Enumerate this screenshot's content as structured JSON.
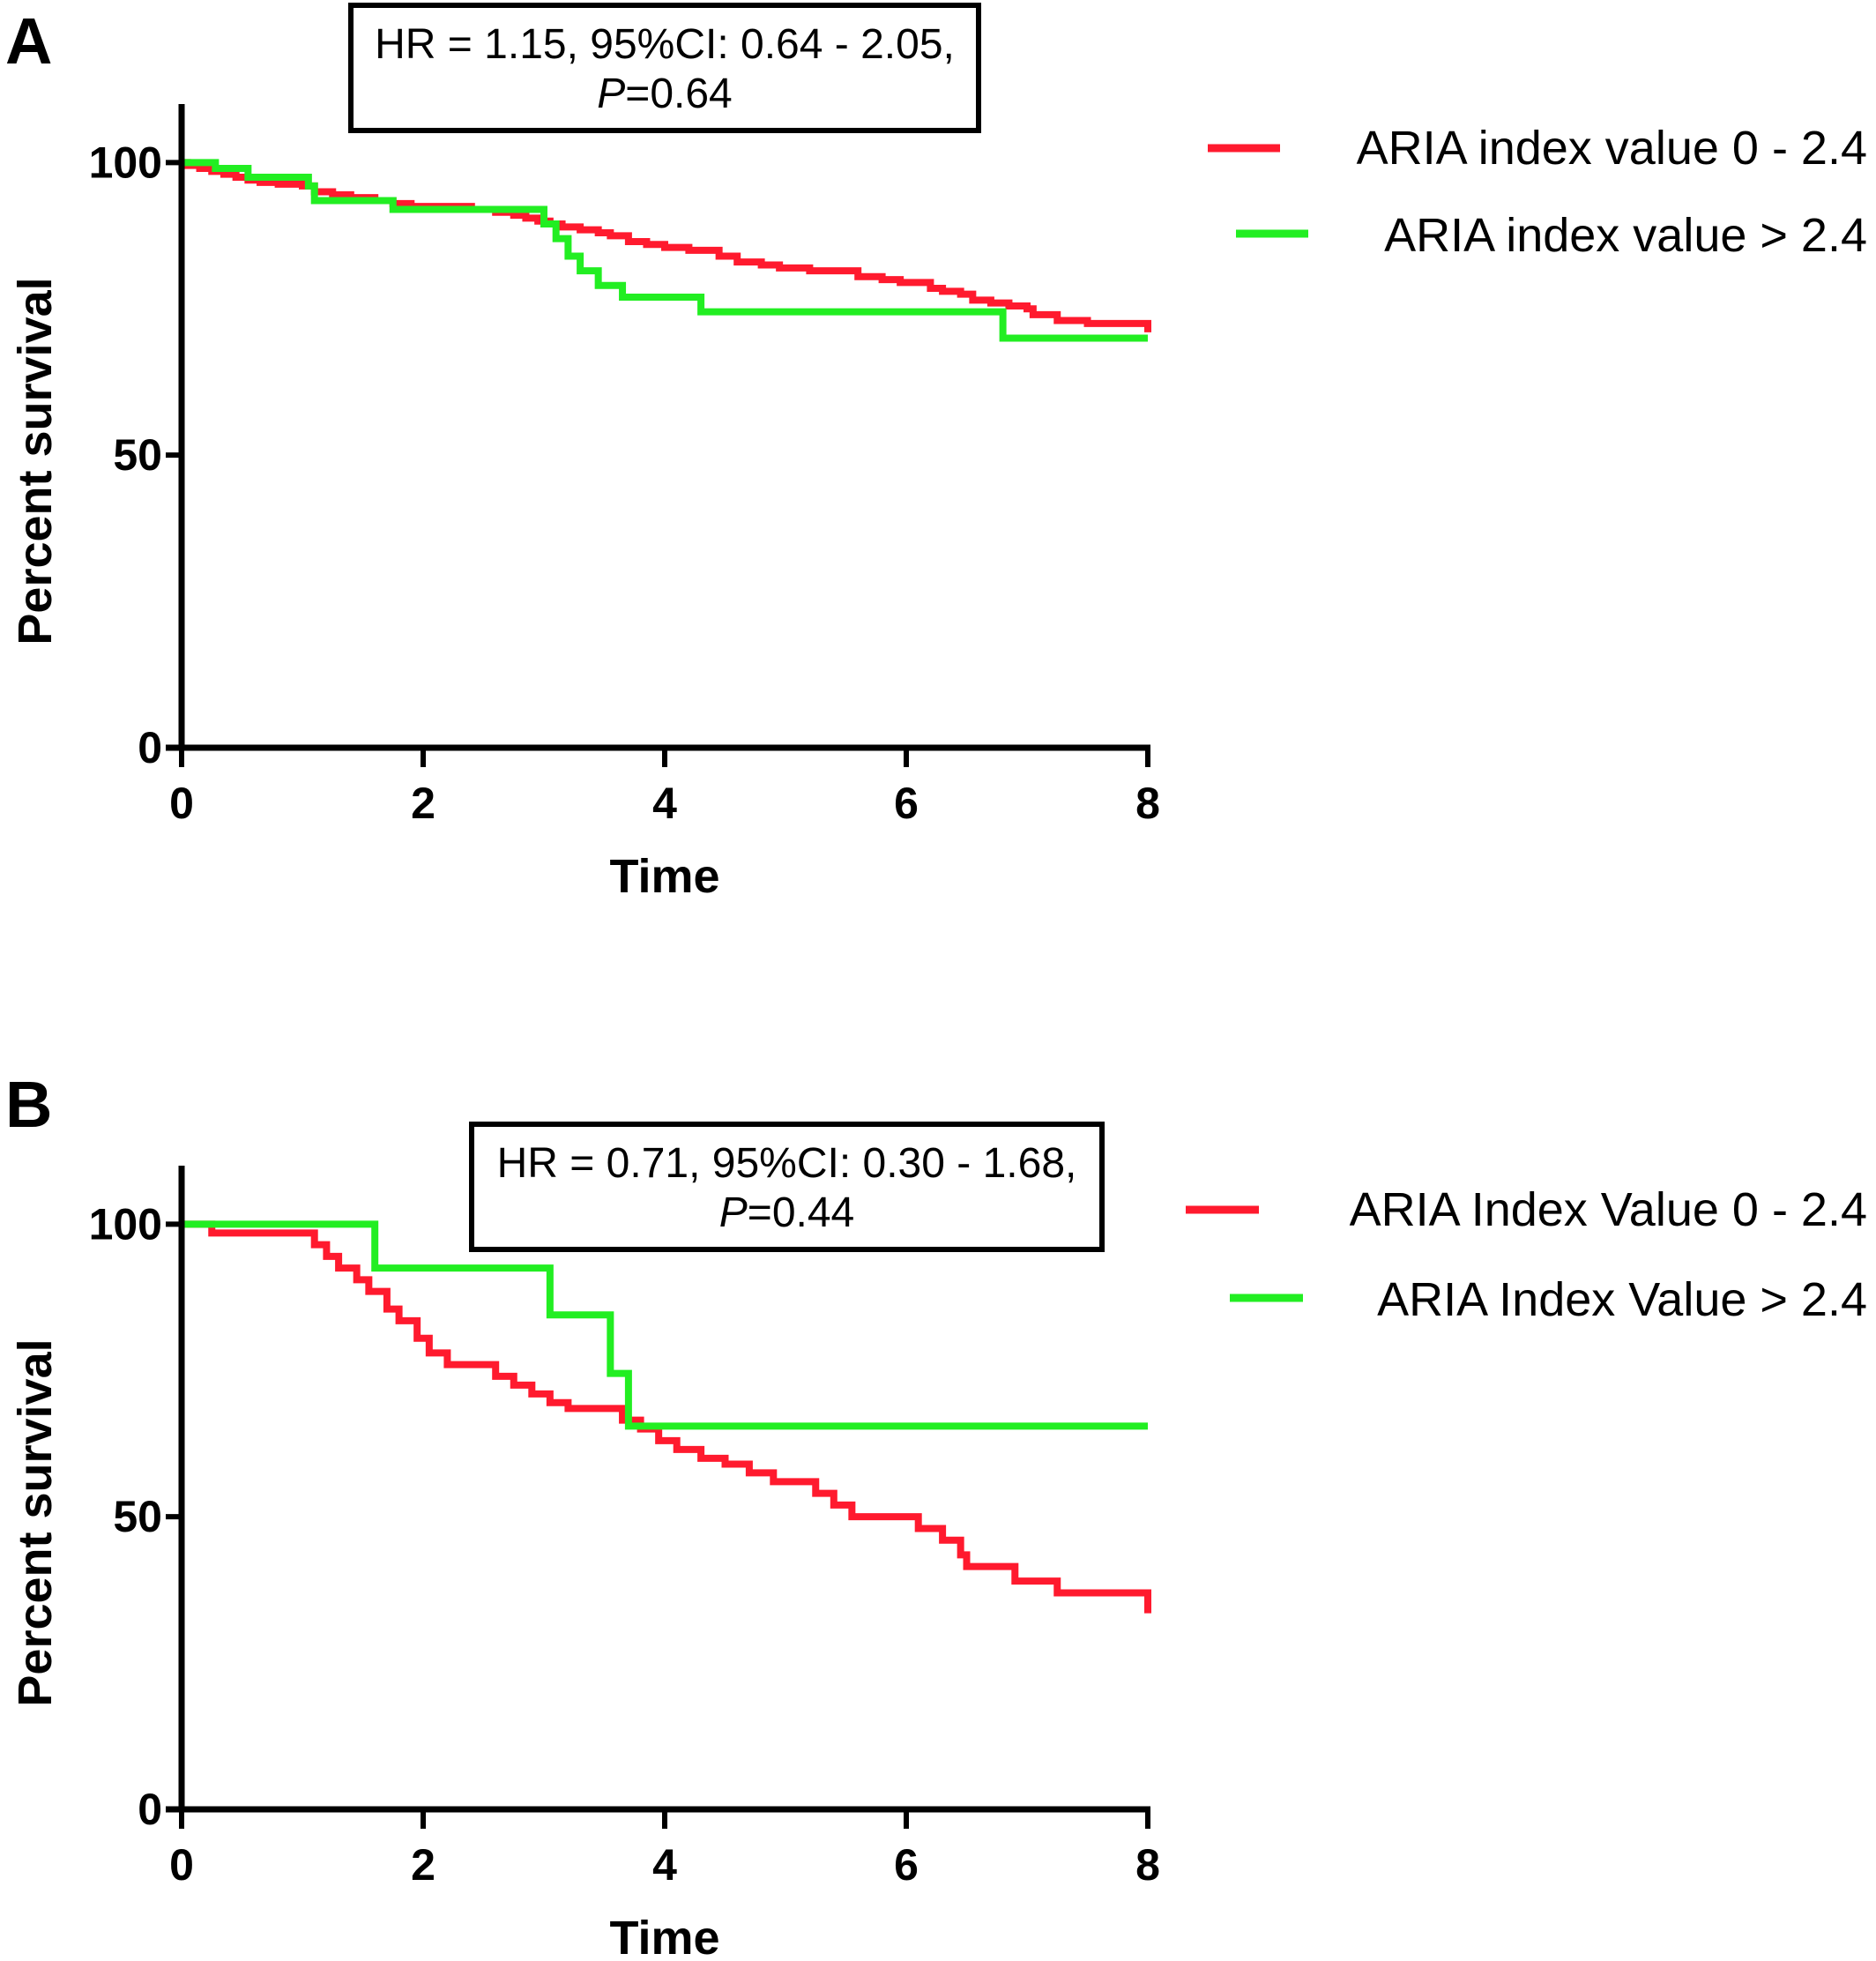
{
  "chart_data": [
    {
      "type": "line",
      "panel_label": "A",
      "xlabel": "Time",
      "ylabel": "Percent survival",
      "xlim": [
        0,
        8
      ],
      "ylim": [
        0,
        110
      ],
      "xticks": [
        0,
        2,
        4,
        6,
        8
      ],
      "yticks": [
        0,
        50,
        100
      ],
      "annotation": {
        "line1": "HR = 1.15, 95%CI: 0.64 - 2.05,",
        "p_italic": "P",
        "p_value": "=0.64"
      },
      "legend_position": "right",
      "series": [
        {
          "name": "ARIA index value 0 - 2.4",
          "color": "#ff1a2e",
          "points": [
            [
              0,
              100
            ],
            [
              0.05,
              99.5
            ],
            [
              0.15,
              99
            ],
            [
              0.25,
              98.5
            ],
            [
              0.35,
              98
            ],
            [
              0.45,
              97.5
            ],
            [
              0.55,
              97
            ],
            [
              0.65,
              96.6
            ],
            [
              0.8,
              96.3
            ],
            [
              1.0,
              96
            ],
            [
              1.1,
              95
            ],
            [
              1.25,
              94.5
            ],
            [
              1.4,
              94
            ],
            [
              1.6,
              93.5
            ],
            [
              1.75,
              93
            ],
            [
              1.9,
              92.5
            ],
            [
              2.4,
              92
            ],
            [
              2.6,
              91.5
            ],
            [
              2.75,
              91
            ],
            [
              2.85,
              90.5
            ],
            [
              2.95,
              90
            ],
            [
              3.05,
              89.5
            ],
            [
              3.15,
              89
            ],
            [
              3.3,
              88.5
            ],
            [
              3.45,
              88
            ],
            [
              3.55,
              87.5
            ],
            [
              3.7,
              86.5
            ],
            [
              3.85,
              86
            ],
            [
              4.0,
              85.5
            ],
            [
              4.2,
              85
            ],
            [
              4.45,
              84
            ],
            [
              4.6,
              83
            ],
            [
              4.8,
              82.5
            ],
            [
              4.95,
              82
            ],
            [
              5.2,
              81.5
            ],
            [
              5.55,
              81.5
            ],
            [
              5.6,
              80.5
            ],
            [
              5.8,
              80
            ],
            [
              5.95,
              79.5
            ],
            [
              6.2,
              78.5
            ],
            [
              6.3,
              78
            ],
            [
              6.45,
              77.5
            ],
            [
              6.55,
              76.5
            ],
            [
              6.7,
              76
            ],
            [
              6.85,
              75.5
            ],
            [
              7.0,
              75
            ],
            [
              7.05,
              74
            ],
            [
              7.25,
              73
            ],
            [
              7.5,
              72.5
            ],
            [
              8.0,
              72.5
            ],
            [
              8.0,
              71
            ]
          ]
        },
        {
          "name": "ARIA index value > 2.4",
          "color": "#22ee22",
          "points": [
            [
              0,
              100
            ],
            [
              0.28,
              99
            ],
            [
              0.55,
              97.5
            ],
            [
              1.05,
              96
            ],
            [
              1.1,
              93.5
            ],
            [
              1.7,
              93.5
            ],
            [
              1.75,
              92
            ],
            [
              2.95,
              92
            ],
            [
              3.0,
              89.5
            ],
            [
              3.1,
              87
            ],
            [
              3.2,
              84
            ],
            [
              3.3,
              81.5
            ],
            [
              3.45,
              79
            ],
            [
              3.65,
              77
            ],
            [
              4.25,
              77
            ],
            [
              4.3,
              74.5
            ],
            [
              6.75,
              74.5
            ],
            [
              6.8,
              70
            ],
            [
              8.0,
              70
            ]
          ]
        }
      ]
    },
    {
      "type": "line",
      "panel_label": "B",
      "xlabel": "Time",
      "ylabel": "Percent survival",
      "xlim": [
        0,
        8
      ],
      "ylim": [
        0,
        110
      ],
      "xticks": [
        0,
        2,
        4,
        6,
        8
      ],
      "yticks": [
        0,
        50,
        100
      ],
      "annotation": {
        "line1": "HR = 0.71, 95%CI: 0.30 - 1.68,",
        "p_italic": "P",
        "p_value": "=0.44"
      },
      "legend_position": "right",
      "series": [
        {
          "name": "ARIA Index Value 0 - 2.4",
          "color": "#ff1a2e",
          "points": [
            [
              0,
              100
            ],
            [
              0.25,
              98.5
            ],
            [
              1.0,
              98.5
            ],
            [
              1.1,
              96.5
            ],
            [
              1.2,
              94.5
            ],
            [
              1.3,
              92.5
            ],
            [
              1.45,
              90.5
            ],
            [
              1.55,
              88.5
            ],
            [
              1.7,
              85.5
            ],
            [
              1.8,
              83.5
            ],
            [
              1.95,
              80.5
            ],
            [
              2.05,
              78
            ],
            [
              2.2,
              76
            ],
            [
              2.6,
              74
            ],
            [
              2.75,
              72.5
            ],
            [
              2.9,
              71
            ],
            [
              3.05,
              69.5
            ],
            [
              3.2,
              68.5
            ],
            [
              3.6,
              68.5
            ],
            [
              3.65,
              66.5
            ],
            [
              3.8,
              65
            ],
            [
              3.95,
              63
            ],
            [
              4.1,
              61.5
            ],
            [
              4.3,
              60
            ],
            [
              4.5,
              59
            ],
            [
              4.7,
              57.5
            ],
            [
              4.9,
              56
            ],
            [
              5.2,
              56
            ],
            [
              5.25,
              54
            ],
            [
              5.4,
              52
            ],
            [
              5.55,
              50
            ],
            [
              6.0,
              50
            ],
            [
              6.1,
              48
            ],
            [
              6.3,
              46
            ],
            [
              6.45,
              43.5
            ],
            [
              6.5,
              41.5
            ],
            [
              6.85,
              41.5
            ],
            [
              6.9,
              39
            ],
            [
              7.2,
              39
            ],
            [
              7.25,
              37
            ],
            [
              8.0,
              37
            ],
            [
              8.0,
              33.5
            ]
          ]
        },
        {
          "name": "ARIA Index Value > 2.4",
          "color": "#22ee22",
          "points": [
            [
              0,
              100
            ],
            [
              1.55,
              100
            ],
            [
              1.6,
              92.5
            ],
            [
              3.0,
              92.5
            ],
            [
              3.05,
              84.5
            ],
            [
              3.5,
              84.5
            ],
            [
              3.55,
              74.5
            ],
            [
              3.65,
              74.5
            ],
            [
              3.7,
              65.5
            ],
            [
              8.0,
              65.5
            ]
          ]
        }
      ]
    }
  ]
}
